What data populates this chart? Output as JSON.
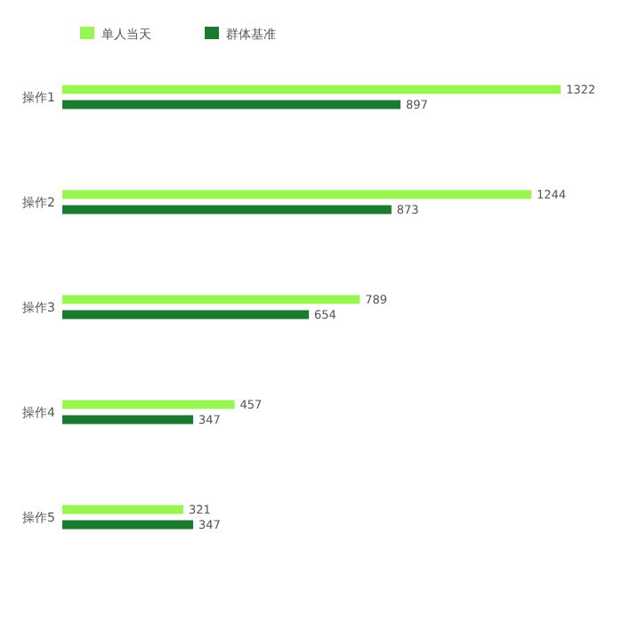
{
  "chart_data": {
    "type": "bar",
    "orientation": "horizontal",
    "categories": [
      "操作1",
      "操作2",
      "操作3",
      "操作4",
      "操作5"
    ],
    "series": [
      {
        "name": "单人当天",
        "color": "#99f550",
        "values": [
          1322,
          1244,
          789,
          457,
          321
        ]
      },
      {
        "name": "群体基准",
        "color": "#1a7a30",
        "values": [
          897,
          873,
          654,
          347,
          347
        ]
      }
    ],
    "data_labels": true,
    "legend": "top left"
  }
}
